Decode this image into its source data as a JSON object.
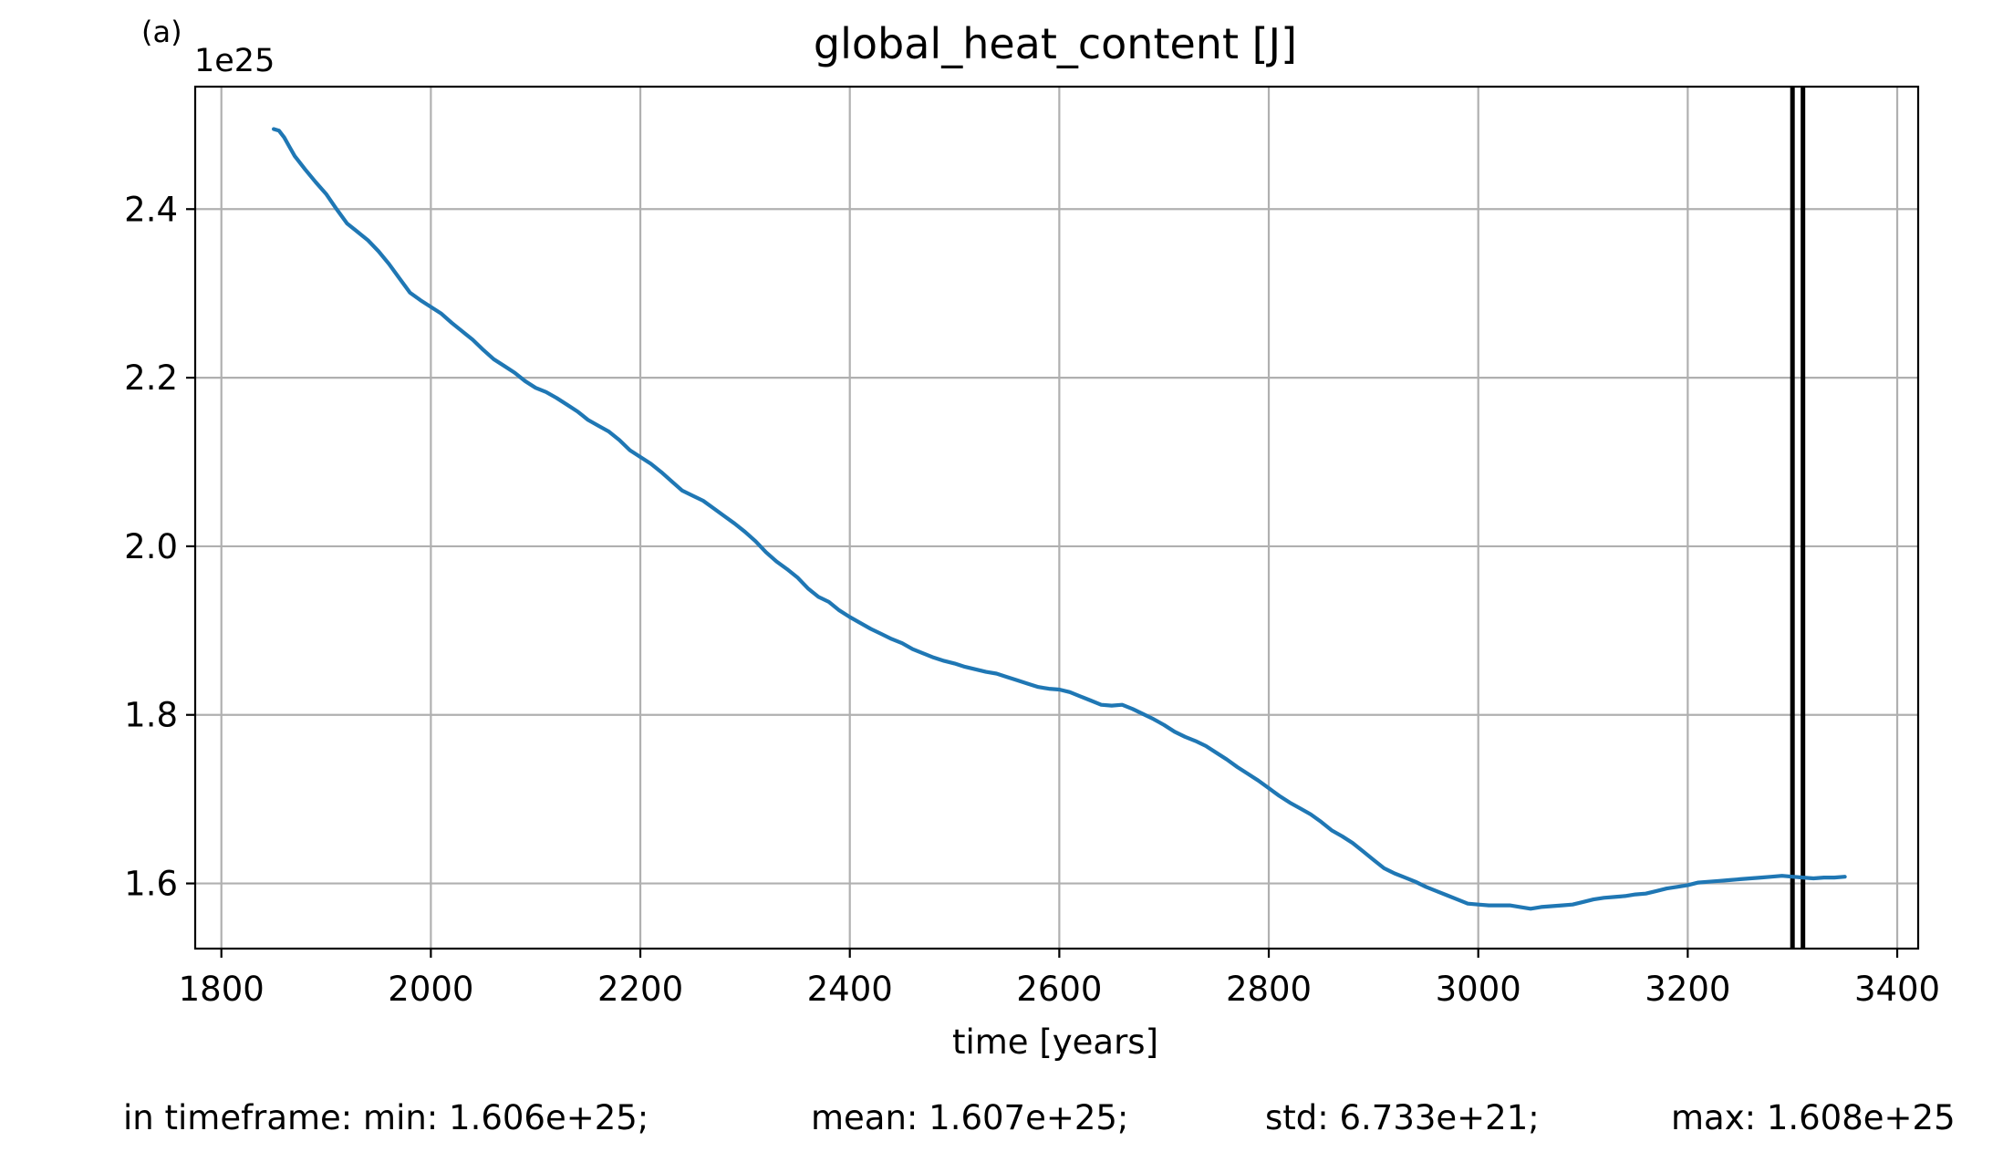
{
  "panel_label": "(a)",
  "chart_data": {
    "type": "line",
    "title": "global_heat_content [J]",
    "xlabel": "time [years]",
    "ylabel": "",
    "y_offset_label": "1e25",
    "y_scale": 1e+25,
    "xlim": [
      1775,
      3420
    ],
    "ylim": [
      1.5227,
      2.5453
    ],
    "grid": true,
    "xticks": [
      1800,
      2000,
      2200,
      2400,
      2600,
      2800,
      3000,
      3200,
      3400
    ],
    "xtick_labels": [
      "1800",
      "2000",
      "2200",
      "2400",
      "2600",
      "2800",
      "3000",
      "3200",
      "3400"
    ],
    "yticks": [
      1.6,
      1.8,
      2.0,
      2.2,
      2.4
    ],
    "ytick_labels": [
      "1.6",
      "1.8",
      "2.0",
      "2.2",
      "2.4"
    ],
    "series": [
      {
        "color": "#1f77b4",
        "x": [
          1850,
          1855,
          1860,
          1865,
          1870,
          1880,
          1890,
          1900,
          1910,
          1920,
          1930,
          1940,
          1950,
          1960,
          1970,
          1980,
          1990,
          2000,
          2010,
          2020,
          2030,
          2040,
          2050,
          2060,
          2070,
          2080,
          2090,
          2100,
          2110,
          2120,
          2130,
          2140,
          2150,
          2160,
          2170,
          2180,
          2190,
          2200,
          2210,
          2220,
          2230,
          2240,
          2250,
          2260,
          2270,
          2280,
          2290,
          2300,
          2310,
          2320,
          2330,
          2340,
          2350,
          2360,
          2370,
          2380,
          2390,
          2400,
          2410,
          2420,
          2430,
          2440,
          2450,
          2460,
          2470,
          2480,
          2490,
          2500,
          2510,
          2520,
          2530,
          2540,
          2550,
          2560,
          2570,
          2580,
          2590,
          2600,
          2610,
          2620,
          2630,
          2640,
          2650,
          2660,
          2670,
          2680,
          2690,
          2700,
          2710,
          2720,
          2730,
          2740,
          2750,
          2760,
          2770,
          2780,
          2790,
          2800,
          2810,
          2820,
          2830,
          2840,
          2850,
          2860,
          2870,
          2880,
          2890,
          2900,
          2910,
          2920,
          2930,
          2940,
          2950,
          2960,
          2970,
          2980,
          2990,
          3000,
          3010,
          3020,
          3030,
          3040,
          3050,
          3060,
          3070,
          3080,
          3090,
          3100,
          3110,
          3120,
          3130,
          3140,
          3150,
          3160,
          3170,
          3180,
          3190,
          3200,
          3210,
          3220,
          3230,
          3240,
          3250,
          3260,
          3270,
          3280,
          3290,
          3300,
          3310,
          3320,
          3330,
          3340,
          3350
        ],
        "values": [
          2.495,
          2.493,
          2.485,
          2.474,
          2.463,
          2.447,
          2.432,
          2.418,
          2.4,
          2.383,
          2.373,
          2.363,
          2.35,
          2.335,
          2.318,
          2.301,
          2.292,
          2.284,
          2.276,
          2.265,
          2.255,
          2.245,
          2.233,
          2.222,
          2.214,
          2.206,
          2.196,
          2.188,
          2.183,
          2.176,
          2.168,
          2.16,
          2.15,
          2.143,
          2.136,
          2.126,
          2.114,
          2.106,
          2.098,
          2.088,
          2.077,
          2.066,
          2.06,
          2.054,
          2.045,
          2.036,
          2.027,
          2.017,
          2.006,
          1.993,
          1.982,
          1.973,
          1.963,
          1.95,
          1.94,
          1.934,
          1.924,
          1.916,
          1.909,
          1.902,
          1.896,
          1.89,
          1.885,
          1.878,
          1.873,
          1.868,
          1.864,
          1.861,
          1.857,
          1.854,
          1.851,
          1.849,
          1.845,
          1.841,
          1.837,
          1.833,
          1.831,
          1.83,
          1.827,
          1.822,
          1.817,
          1.812,
          1.811,
          1.812,
          1.807,
          1.801,
          1.795,
          1.788,
          1.78,
          1.774,
          1.769,
          1.763,
          1.755,
          1.747,
          1.738,
          1.73,
          1.722,
          1.713,
          1.704,
          1.696,
          1.689,
          1.682,
          1.673,
          1.663,
          1.656,
          1.648,
          1.638,
          1.628,
          1.618,
          1.612,
          1.607,
          1.602,
          1.596,
          1.591,
          1.586,
          1.581,
          1.576,
          1.575,
          1.574,
          1.574,
          1.574,
          1.572,
          1.57,
          1.572,
          1.573,
          1.574,
          1.575,
          1.578,
          1.581,
          1.583,
          1.584,
          1.585,
          1.587,
          1.588,
          1.591,
          1.594,
          1.596,
          1.598,
          1.601,
          1.602,
          1.603,
          1.604,
          1.605,
          1.606,
          1.607,
          1.608,
          1.609,
          1.608,
          1.607,
          1.606,
          1.607,
          1.607,
          1.608
        ]
      }
    ],
    "vlines": [
      3300,
      3310
    ],
    "vline_color": "#000000"
  },
  "footer": {
    "min": "in timeframe: min: 1.606e+25;",
    "mean": "mean: 1.607e+25;",
    "std": "std: 6.733e+21;",
    "max": "max: 1.608e+25"
  }
}
